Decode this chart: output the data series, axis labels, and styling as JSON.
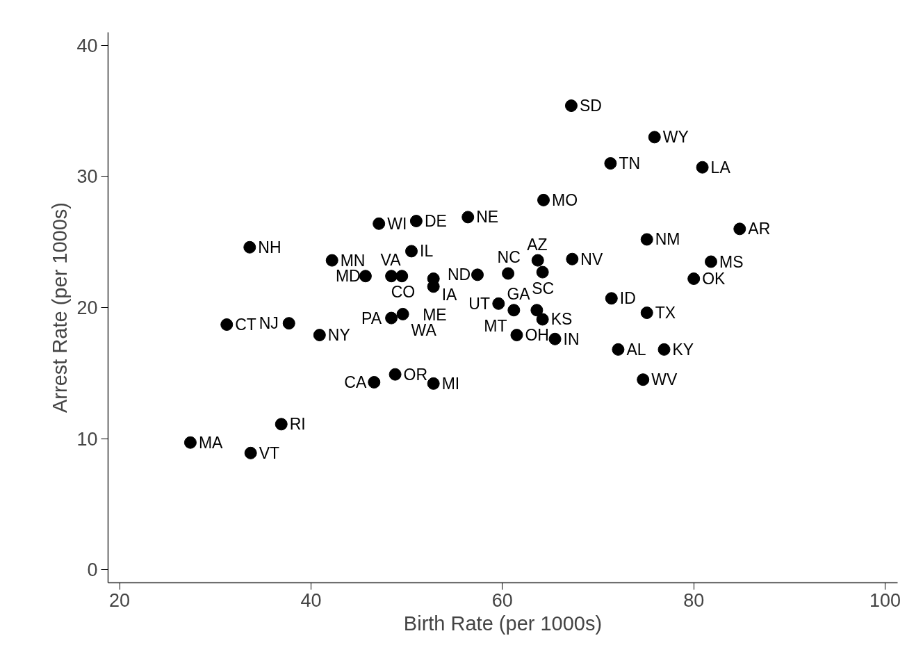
{
  "chart_data": {
    "type": "scatter",
    "xlabel": "Birth Rate (per 1000s)",
    "ylabel": "Arrest Rate (per 1000s)",
    "xlim": [
      18.8,
      101.3
    ],
    "ylim": [
      -1.0,
      41.0
    ],
    "xticks": [
      20,
      40,
      60,
      80,
      100
    ],
    "yticks": [
      0,
      10,
      20,
      30,
      40
    ],
    "grid": false,
    "marker": "circle",
    "series": [
      {
        "color": "#000000",
        "x": [
          67.2,
          75.9,
          71.3,
          80.9,
          64.3,
          56.4,
          51.0,
          47.1,
          84.8,
          75.1,
          33.6,
          50.5,
          42.2,
          63.7,
          67.3,
          81.8,
          64.2,
          45.7,
          48.4,
          49.5,
          57.4,
          60.6,
          52.8,
          52.8,
          80.0,
          71.4,
          59.6,
          61.2,
          63.6,
          64.2,
          75.1,
          49.6,
          48.4,
          31.2,
          37.7,
          40.9,
          61.5,
          65.5,
          72.1,
          76.9,
          74.7,
          48.8,
          46.6,
          52.8,
          36.9,
          27.4,
          33.7
        ],
        "values": [
          35.4,
          33.0,
          31.0,
          30.7,
          28.2,
          26.9,
          26.6,
          26.4,
          26.0,
          25.2,
          24.6,
          24.3,
          23.6,
          23.6,
          23.7,
          23.5,
          22.7,
          22.4,
          22.4,
          22.4,
          22.5,
          22.6,
          22.2,
          21.6,
          22.2,
          20.7,
          20.3,
          19.8,
          19.8,
          19.1,
          19.6,
          19.5,
          19.2,
          18.7,
          18.8,
          17.9,
          17.9,
          17.6,
          16.8,
          16.8,
          14.5,
          14.9,
          14.3,
          14.2,
          11.1,
          9.7,
          8.9
        ]
      }
    ],
    "annotations": [
      {
        "text": "SD",
        "x": 67.2,
        "y": 35.4
      },
      {
        "text": "WY",
        "x": 75.9,
        "y": 33.0
      },
      {
        "text": "TN",
        "x": 71.3,
        "y": 31.0
      },
      {
        "text": "LA",
        "x": 80.9,
        "y": 30.7
      },
      {
        "text": "MO",
        "x": 64.3,
        "y": 28.2
      },
      {
        "text": "NE",
        "x": 56.4,
        "y": 26.9
      },
      {
        "text": "DE",
        "x": 51.0,
        "y": 26.6
      },
      {
        "text": "WI",
        "x": 47.1,
        "y": 26.4
      },
      {
        "text": "AR",
        "x": 84.8,
        "y": 26.0
      },
      {
        "text": "NM",
        "x": 75.1,
        "y": 25.2
      },
      {
        "text": "NH",
        "x": 33.6,
        "y": 24.6
      },
      {
        "text": "IL",
        "x": 50.5,
        "y": 24.3
      },
      {
        "text": "MN",
        "x": 42.2,
        "y": 23.6
      },
      {
        "text": "AZ",
        "x": 63.7,
        "y": 23.6
      },
      {
        "text": "NV",
        "x": 67.3,
        "y": 23.7
      },
      {
        "text": "MS",
        "x": 81.8,
        "y": 23.5
      },
      {
        "text": "SC",
        "x": 64.2,
        "y": 22.7
      },
      {
        "text": "MD",
        "x": 45.7,
        "y": 22.4
      },
      {
        "text": "VA",
        "x": 48.4,
        "y": 22.4
      },
      {
        "text": "CO",
        "x": 49.5,
        "y": 22.4
      },
      {
        "text": "ND",
        "x": 57.4,
        "y": 22.5
      },
      {
        "text": "NC",
        "x": 60.6,
        "y": 22.6
      },
      {
        "text": "IA",
        "x": 52.8,
        "y": 22.2
      },
      {
        "text": "ME",
        "x": 52.8,
        "y": 21.6
      },
      {
        "text": "OK",
        "x": 80.0,
        "y": 22.2
      },
      {
        "text": "ID",
        "x": 71.4,
        "y": 20.7
      },
      {
        "text": "UT",
        "x": 59.6,
        "y": 20.3
      },
      {
        "text": "MT",
        "x": 61.2,
        "y": 19.8
      },
      {
        "text": "GA",
        "x": 63.6,
        "y": 19.8
      },
      {
        "text": "KS",
        "x": 64.2,
        "y": 19.1
      },
      {
        "text": "TX",
        "x": 75.1,
        "y": 19.6
      },
      {
        "text": "WA",
        "x": 49.6,
        "y": 19.5
      },
      {
        "text": "PA",
        "x": 48.4,
        "y": 19.2
      },
      {
        "text": "CT",
        "x": 31.2,
        "y": 18.7
      },
      {
        "text": "NJ",
        "x": 37.7,
        "y": 18.8
      },
      {
        "text": "NY",
        "x": 40.9,
        "y": 17.9
      },
      {
        "text": "OH",
        "x": 61.5,
        "y": 17.9
      },
      {
        "text": "IN",
        "x": 65.5,
        "y": 17.6
      },
      {
        "text": "AL",
        "x": 72.1,
        "y": 16.8
      },
      {
        "text": "KY",
        "x": 76.9,
        "y": 16.8
      },
      {
        "text": "WV",
        "x": 74.7,
        "y": 14.5
      },
      {
        "text": "OR",
        "x": 48.8,
        "y": 14.9
      },
      {
        "text": "CA",
        "x": 46.6,
        "y": 14.3
      },
      {
        "text": "MI",
        "x": 52.8,
        "y": 14.2
      },
      {
        "text": "RI",
        "x": 36.9,
        "y": 11.1
      },
      {
        "text": "MA",
        "x": 27.4,
        "y": 9.7
      },
      {
        "text": "VT",
        "x": 33.7,
        "y": 8.9
      }
    ]
  }
}
